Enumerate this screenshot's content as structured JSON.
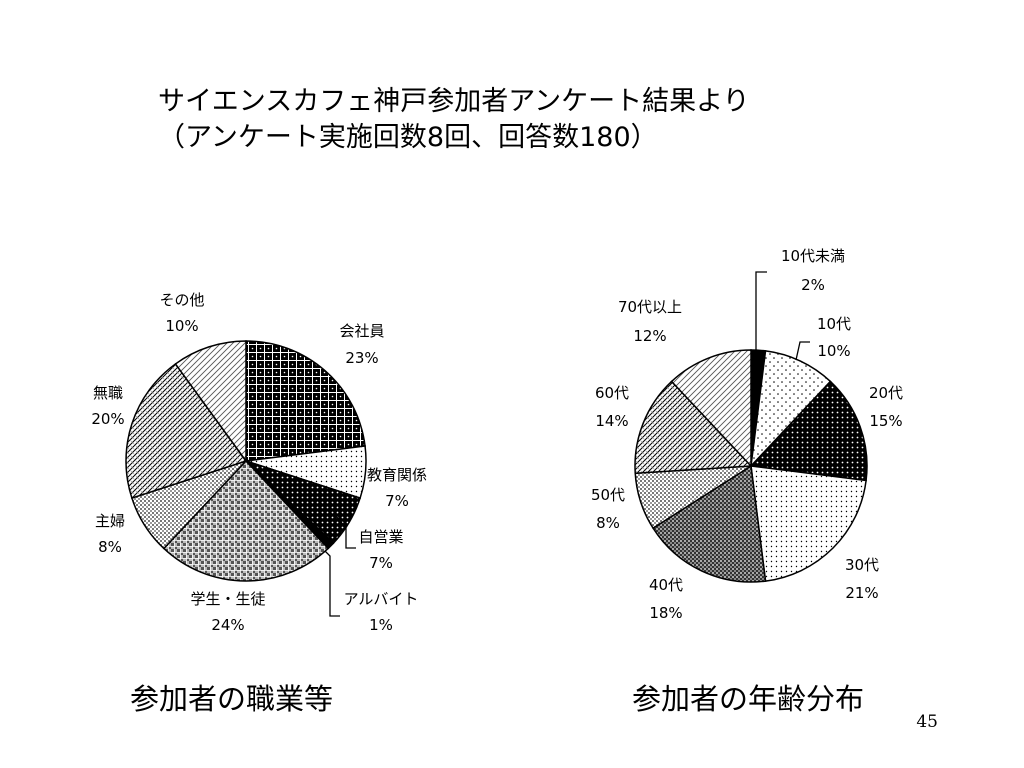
{
  "slide": {
    "title_line1": "サイエンスカフェ神戸参加者アンケート結果より",
    "title_line2": "（アンケート実施回数8回、回答数180）",
    "page_number": "45"
  },
  "chart_data": [
    {
      "type": "pie",
      "caption": "参加者の職業等",
      "slices": [
        {
          "label": "会社員",
          "value": 23,
          "value_label": "23%",
          "pattern": "grid-dark"
        },
        {
          "label": "教育関係",
          "value": 7,
          "value_label": "7%",
          "pattern": "dots-light"
        },
        {
          "label": "自営業",
          "value": 7,
          "value_label": "7%",
          "pattern": "dots-dark"
        },
        {
          "label": "アルバイト",
          "value": 1,
          "value_label": "1%",
          "pattern": "solid-black"
        },
        {
          "label": "学生・生徒",
          "value": 24,
          "value_label": "24%",
          "pattern": "check-medium"
        },
        {
          "label": "主婦",
          "value": 8,
          "value_label": "8%",
          "pattern": "dots-medium"
        },
        {
          "label": "無職",
          "value": 20,
          "value_label": "20%",
          "pattern": "diag-dense"
        },
        {
          "label": "その他",
          "value": 10,
          "value_label": "10%",
          "pattern": "diag-light"
        }
      ]
    },
    {
      "type": "pie",
      "caption": "参加者の年齢分布",
      "slices": [
        {
          "label": "10代未満",
          "value": 2,
          "value_label": "2%",
          "pattern": "solid-black"
        },
        {
          "label": "10代",
          "value": 10,
          "value_label": "10%",
          "pattern": "dots-sparse"
        },
        {
          "label": "20代",
          "value": 15,
          "value_label": "15%",
          "pattern": "dots-dark"
        },
        {
          "label": "30代",
          "value": 21,
          "value_label": "21%",
          "pattern": "dots-light"
        },
        {
          "label": "40代",
          "value": 18,
          "value_label": "18%",
          "pattern": "check-dark"
        },
        {
          "label": "50代",
          "value": 8,
          "value_label": "8%",
          "pattern": "dots-medium"
        },
        {
          "label": "60代",
          "value": 14,
          "value_label": "14%",
          "pattern": "diag-dense"
        },
        {
          "label": "70代以上",
          "value": 12,
          "value_label": "12%",
          "pattern": "diag-light"
        }
      ]
    }
  ]
}
